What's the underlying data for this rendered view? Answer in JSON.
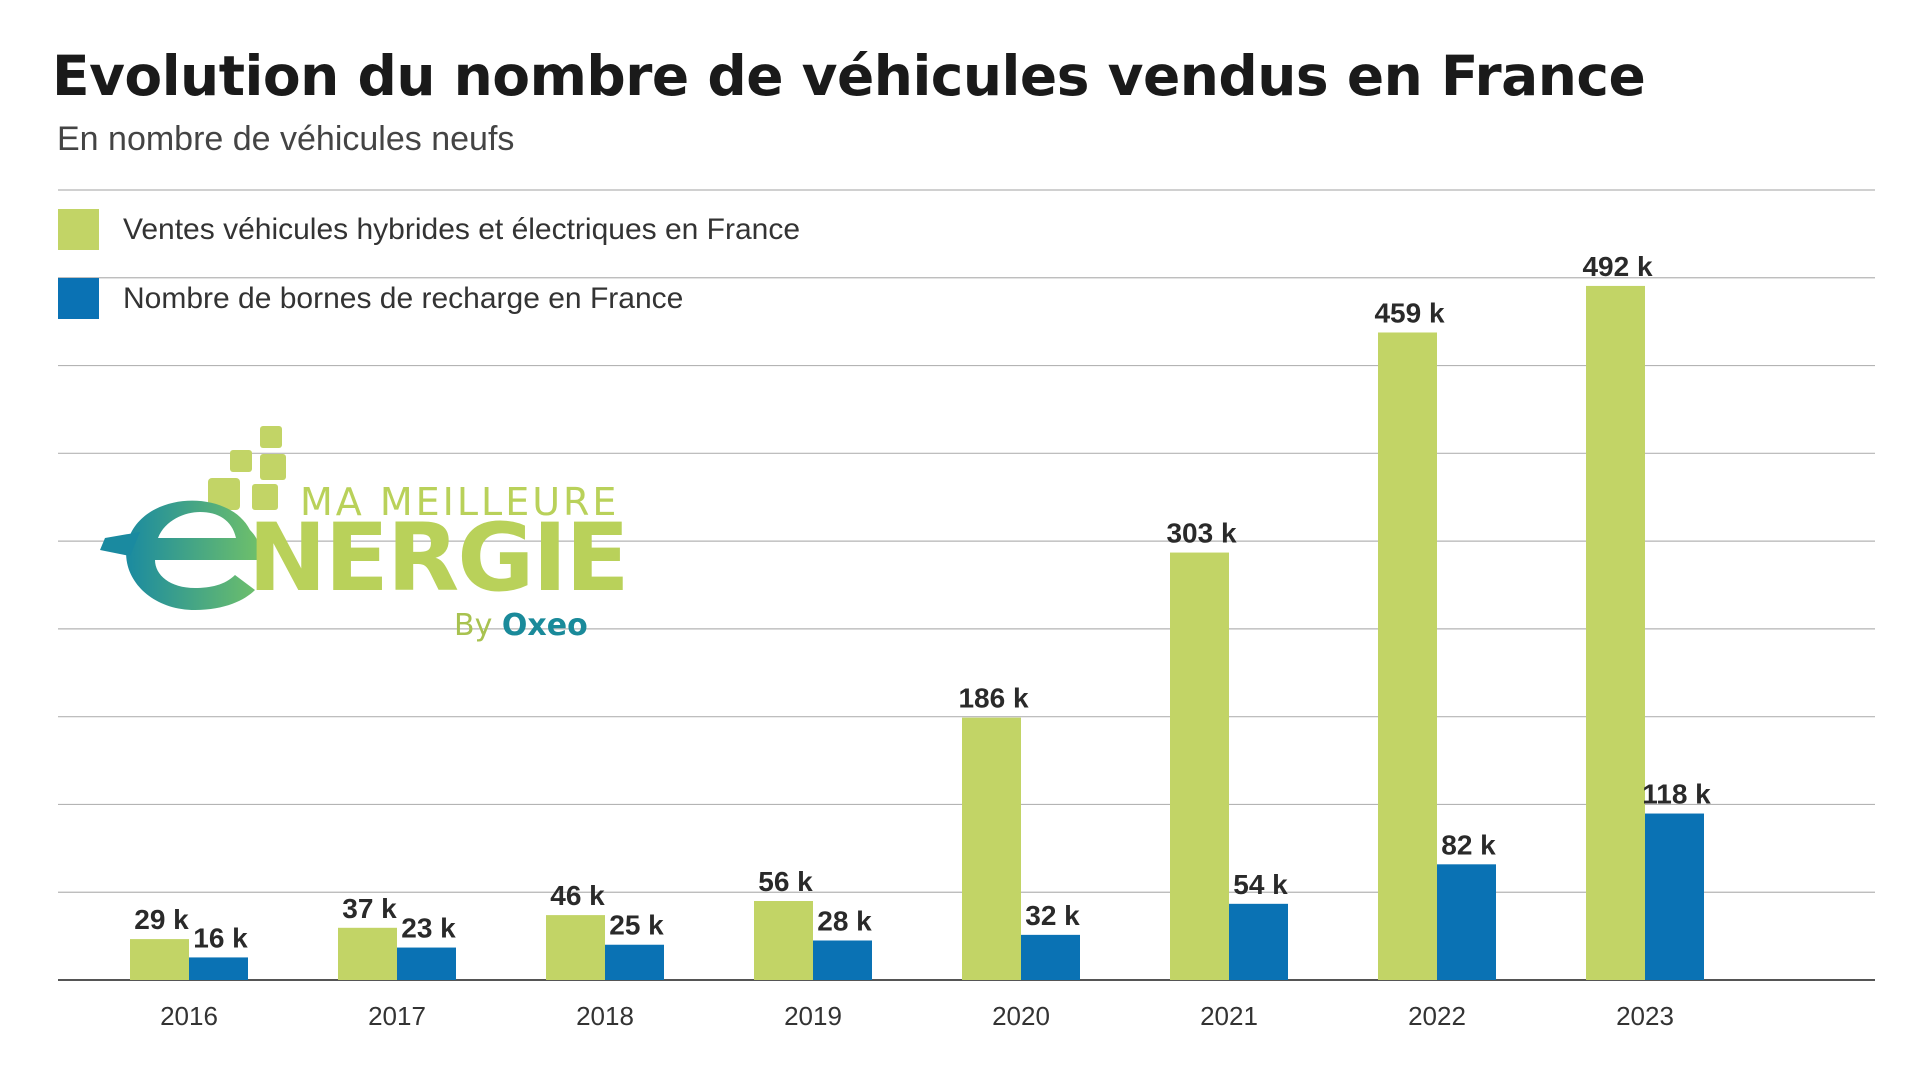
{
  "header": {
    "title": "Evolution du nombre de véhicules vendus en France",
    "subtitle": "En nombre de véhicules neufs"
  },
  "colors": {
    "green": "#c2d466",
    "blue": "#0a72b4",
    "grid": "#b4b4b4",
    "axis": "#555555",
    "label": "#2a2a2a"
  },
  "logo": {
    "line1": "MA MEILLEURE",
    "line2": "NERGIE",
    "by": "By",
    "brand": "Oxeo",
    "icon": "e-leaf-logo-icon"
  },
  "chart_data": {
    "type": "bar",
    "title": "Evolution du nombre de véhicules vendus en France",
    "subtitle": "En nombre de véhicules neufs",
    "xlabel": "",
    "ylabel": "",
    "categories": [
      "2016",
      "2017",
      "2018",
      "2019",
      "2020",
      "2021",
      "2022",
      "2023"
    ],
    "series": [
      {
        "name": "Ventes véhicules hybrides et électriques en France",
        "values": [
          29,
          37,
          46,
          56,
          186,
          303,
          459,
          492
        ],
        "labels": [
          "29 k",
          "37 k",
          "46 k",
          "56 k",
          "186 k",
          "303 k",
          "459 k",
          "492 k"
        ]
      },
      {
        "name": "Nombre de bornes de recharge en France",
        "values": [
          16,
          23,
          25,
          28,
          32,
          54,
          82,
          118
        ],
        "labels": [
          "16 k",
          "23 k",
          "25 k",
          "28 k",
          "32 k",
          "54 k",
          "82 k",
          "118 k"
        ]
      }
    ],
    "ylim": [
      0,
      560
    ],
    "yunit": "k",
    "grid": true,
    "legend": "top-left"
  }
}
